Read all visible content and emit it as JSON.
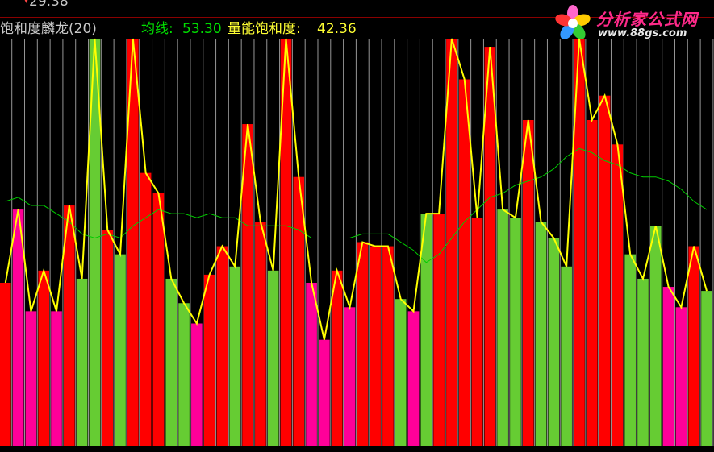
{
  "top_value": "29.38",
  "header": {
    "indicator_name": "饱和度麟龙(20)",
    "avg_label": "均线:",
    "avg_value": "53.30",
    "sat_label": "量能饱和度:",
    "sat_value": "42.36"
  },
  "logo": {
    "name": "分析家公式网",
    "url": "www.88gs.com"
  },
  "colors": {
    "background": "#000000",
    "bar_red": "#ff0000",
    "bar_green": "#66cc33",
    "bar_magenta": "#ff0099",
    "separator": "#c8c8c8",
    "yellow_line": "#ffff00",
    "avg_line": "#00cc00",
    "header_name": "#c8c8c8",
    "avg_text": "#00e000",
    "sat_text": "#ffff33",
    "top_rule": "#8a0000"
  },
  "chart_data": {
    "type": "bar",
    "ylim": [
      0,
      100
    ],
    "series": [
      {
        "name": "量能饱和度",
        "type": "bar+line",
        "values": [
          40,
          58,
          33,
          43,
          33,
          59,
          41,
          100,
          53,
          47,
          100,
          67,
          62,
          41,
          35,
          30,
          42,
          49,
          44,
          79,
          55,
          43,
          100,
          66,
          40,
          26,
          43,
          34,
          50,
          49,
          49,
          36,
          33,
          57,
          57,
          100,
          90,
          56,
          98,
          58,
          56,
          80,
          55,
          51,
          44,
          100,
          80,
          86,
          74,
          47,
          41,
          54,
          39,
          34,
          49,
          38
        ]
      },
      {
        "name": "均线",
        "values": [
          60,
          61,
          59,
          59,
          57,
          55,
          52,
          51,
          52,
          51,
          54,
          56,
          58,
          57,
          57,
          56,
          57,
          56,
          56,
          54,
          54,
          54,
          54,
          53,
          51,
          51,
          51,
          51,
          52,
          52,
          52,
          50,
          48,
          45,
          47,
          51,
          55,
          58,
          61,
          62,
          64,
          65,
          66,
          68,
          71,
          73,
          72,
          70,
          69,
          67,
          66,
          66,
          65,
          63,
          60,
          58
        ]
      }
    ],
    "bar_colors": [
      "red",
      "magenta",
      "magenta",
      "red",
      "magenta",
      "red",
      "green",
      "green",
      "red",
      "green",
      "red",
      "red",
      "red",
      "green",
      "green",
      "magenta",
      "red",
      "red",
      "green",
      "red",
      "red",
      "green",
      "red",
      "red",
      "magenta",
      "magenta",
      "red",
      "magenta",
      "red",
      "red",
      "red",
      "green",
      "magenta",
      "green",
      "red",
      "red",
      "red",
      "red",
      "red",
      "green",
      "green",
      "red",
      "green",
      "green",
      "green",
      "red",
      "red",
      "red",
      "red",
      "green",
      "green",
      "green",
      "magenta",
      "magenta",
      "red",
      "green"
    ]
  }
}
